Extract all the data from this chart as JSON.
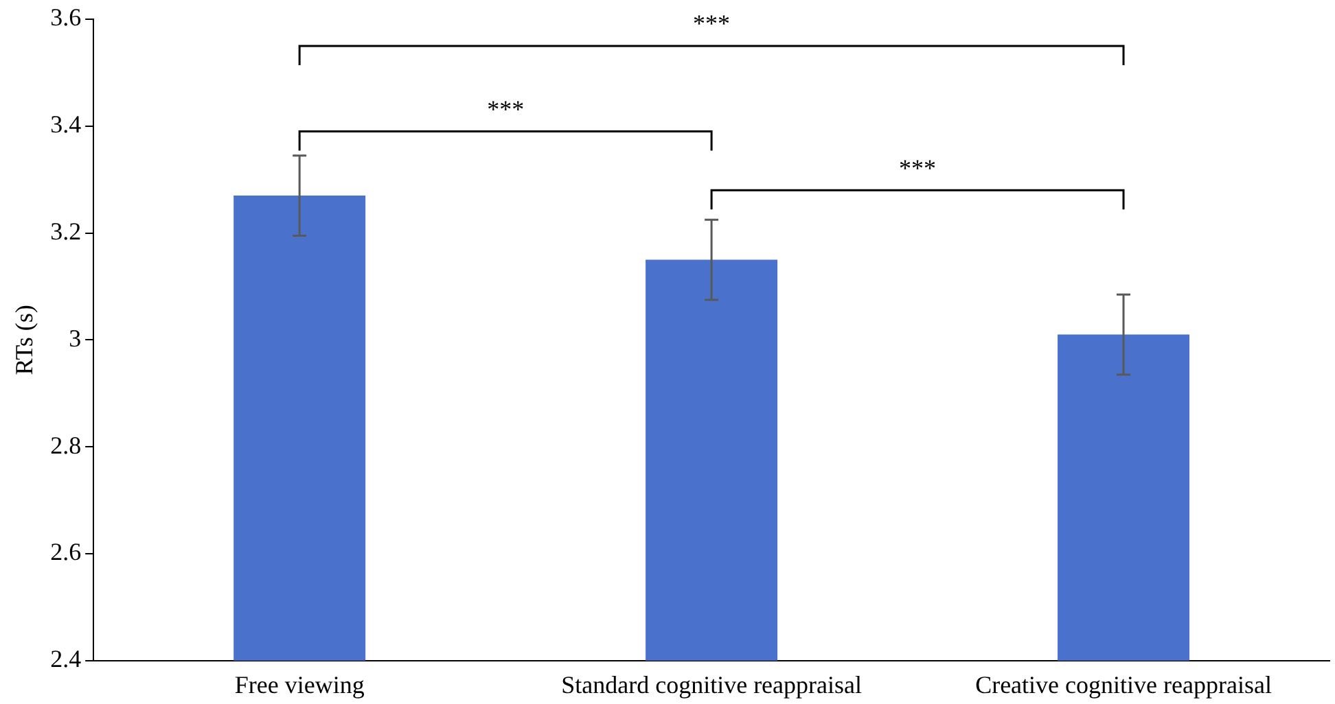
{
  "chart_data": {
    "type": "bar",
    "ylabel": "RTs (s)",
    "categories": [
      "Free viewing",
      "Standard cognitive reappraisal",
      "Creative cognitive reappraisal"
    ],
    "values": [
      3.27,
      3.15,
      3.01
    ],
    "errors": [
      0.075,
      0.075,
      0.075
    ],
    "color": "#4a72cc",
    "ylim": [
      2.4,
      3.6
    ],
    "yticks": [
      2.4,
      2.6,
      2.8,
      3,
      3.2,
      3.4,
      3.6
    ],
    "grid": false,
    "annotations": [
      "***",
      "***",
      "***"
    ]
  }
}
